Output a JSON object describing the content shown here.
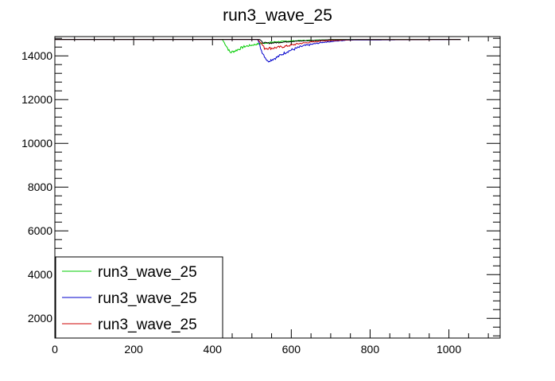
{
  "chart_data": {
    "type": "line",
    "title": "run3_wave_25",
    "xlabel": "",
    "ylabel": "",
    "xlim": [
      0,
      1130
    ],
    "ylim": [
      1100,
      14880
    ],
    "xticks": [
      0,
      200,
      400,
      600,
      800,
      1000
    ],
    "xtick_labels": [
      "0",
      "200",
      "400",
      "600",
      "800",
      "1000"
    ],
    "yticks": [
      2000,
      4000,
      6000,
      8000,
      10000,
      12000,
      14000
    ],
    "ytick_labels": [
      "2000",
      "4000",
      "6000",
      "8000",
      "10000",
      "12000",
      "14000"
    ],
    "x_range": [
      0,
      1030
    ],
    "baseline": 14750,
    "legend_position": "bottom-left",
    "series": [
      {
        "name": "run3_wave_25",
        "color": "#00cc00",
        "points": [
          [
            0,
            14750
          ],
          [
            425,
            14750
          ],
          [
            435,
            14450
          ],
          [
            445,
            14150
          ],
          [
            460,
            14250
          ],
          [
            480,
            14420
          ],
          [
            520,
            14560
          ],
          [
            560,
            14640
          ],
          [
            620,
            14700
          ],
          [
            700,
            14740
          ],
          [
            1030,
            14750
          ]
        ]
      },
      {
        "name": "run3_wave_25",
        "color": "#0000cc",
        "points": [
          [
            0,
            14750
          ],
          [
            515,
            14750
          ],
          [
            525,
            14200
          ],
          [
            540,
            13750
          ],
          [
            560,
            13900
          ],
          [
            590,
            14200
          ],
          [
            630,
            14450
          ],
          [
            680,
            14620
          ],
          [
            740,
            14720
          ],
          [
            1030,
            14750
          ]
        ]
      },
      {
        "name": "run3_wave_25",
        "color": "#cc0000",
        "points": [
          [
            0,
            14750
          ],
          [
            515,
            14750
          ],
          [
            523,
            14600
          ],
          [
            532,
            14350
          ],
          [
            550,
            14350
          ],
          [
            580,
            14420
          ],
          [
            620,
            14560
          ],
          [
            680,
            14690
          ],
          [
            760,
            14740
          ],
          [
            1030,
            14750
          ]
        ]
      },
      {
        "name": "",
        "color": "#000000",
        "points": [
          [
            0,
            14750
          ],
          [
            520,
            14750
          ],
          [
            527,
            14600
          ],
          [
            545,
            14580
          ],
          [
            600,
            14660
          ],
          [
            700,
            14740
          ],
          [
            1030,
            14750
          ]
        ]
      }
    ]
  }
}
